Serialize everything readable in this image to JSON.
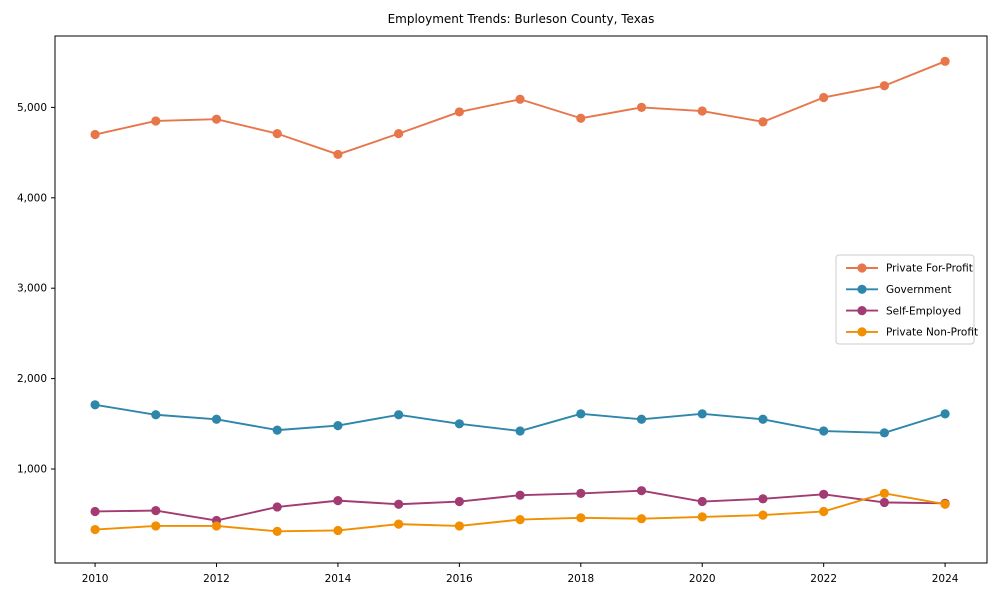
{
  "chart_data": {
    "type": "line",
    "title": "Employment Trends: Burleson County, Texas",
    "xlabel": "",
    "ylabel": "",
    "x": [
      2010,
      2011,
      2012,
      2013,
      2014,
      2015,
      2016,
      2017,
      2018,
      2019,
      2020,
      2021,
      2022,
      2023,
      2024
    ],
    "series": [
      {
        "name": "Private For-Profit",
        "color": "#E8764B",
        "values": [
          4700,
          4850,
          4870,
          4710,
          4480,
          4710,
          4950,
          5090,
          4880,
          5000,
          4960,
          4840,
          5110,
          5240,
          5510
        ]
      },
      {
        "name": "Government",
        "color": "#2E86AB",
        "values": [
          1710,
          1600,
          1550,
          1430,
          1480,
          1600,
          1500,
          1420,
          1610,
          1550,
          1610,
          1550,
          1420,
          1400,
          1610
        ]
      },
      {
        "name": "Self-Employed",
        "color": "#A23B72",
        "values": [
          530,
          540,
          430,
          580,
          650,
          610,
          640,
          710,
          730,
          760,
          640,
          670,
          720,
          630,
          620
        ]
      },
      {
        "name": "Private Non-Profit",
        "color": "#F18F01",
        "values": [
          330,
          370,
          370,
          310,
          320,
          390,
          370,
          440,
          460,
          450,
          470,
          490,
          530,
          730,
          610
        ]
      }
    ],
    "xticks": [
      2010,
      2012,
      2014,
      2016,
      2018,
      2020,
      2022,
      2024
    ],
    "xtick_labels": [
      "2010",
      "2012",
      "2014",
      "2016",
      "2018",
      "2020",
      "2022",
      "2024"
    ],
    "yticks": [
      1000,
      2000,
      3000,
      4000,
      5000
    ],
    "ytick_labels": [
      "1,000",
      "2,000",
      "3,000",
      "4,000",
      "5,000"
    ],
    "xlim": [
      2009.34,
      2024.69
    ],
    "ylim": [
      -40,
      5790
    ],
    "grid": false,
    "legend_position": "center-right",
    "axis_color": "#000000",
    "background_color": "#ffffff"
  }
}
